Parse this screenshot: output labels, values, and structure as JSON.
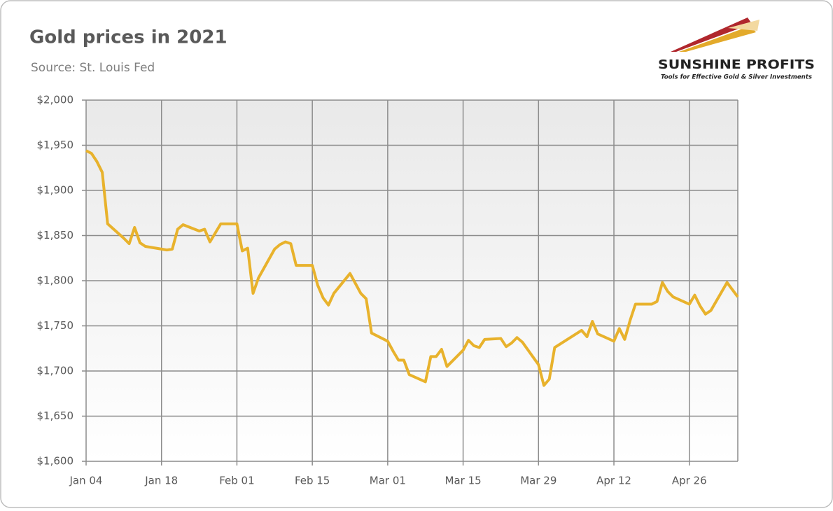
{
  "chart_data": {
    "type": "line",
    "title": "Gold prices in 2021",
    "subtitle": "Source: St. Louis Fed",
    "logo": {
      "name": "SUNSHINE PROFITS",
      "tagline": "Tools for Effective Gold & Silver Investments"
    },
    "x": [
      0,
      1,
      2,
      3,
      4,
      7,
      8,
      9,
      10,
      11,
      15,
      16,
      17,
      18,
      21,
      22,
      23,
      24,
      25,
      28,
      29,
      30,
      31,
      32,
      35,
      36,
      37,
      38,
      39,
      42,
      43,
      44,
      45,
      46,
      49,
      50,
      51,
      52,
      53,
      56,
      57,
      58,
      59,
      60,
      63,
      64,
      65,
      66,
      67,
      70,
      71,
      72,
      73,
      74,
      77,
      78,
      79,
      80,
      81,
      84,
      85,
      86,
      87,
      92,
      93,
      94,
      95,
      98,
      99,
      100,
      101,
      102,
      105,
      106,
      107,
      108,
      109,
      112,
      113,
      114,
      115,
      116,
      119,
      121
    ],
    "series": [
      {
        "name": "Gold price",
        "color": "#e8b22c",
        "values": [
          1944,
          1941,
          1932,
          1920,
          1863,
          1847,
          1841,
          1859,
          1842,
          1838,
          1834,
          1835,
          1857,
          1862,
          1855,
          1857,
          1843,
          1853,
          1863,
          1863,
          1833,
          1836,
          1786,
          1803,
          1835,
          1840,
          1843,
          1841,
          1817,
          1817,
          1795,
          1781,
          1773,
          1786,
          1808,
          1797,
          1786,
          1780,
          1742,
          1733,
          1722,
          1712,
          1712,
          1696,
          1688,
          1716,
          1716,
          1724,
          1705,
          1723,
          1734,
          1728,
          1726,
          1735,
          1736,
          1727,
          1731,
          1737,
          1732,
          1707,
          1684,
          1691,
          1726,
          1745,
          1738,
          1755,
          1741,
          1733,
          1747,
          1735,
          1756,
          1774,
          1774,
          1777,
          1798,
          1788,
          1782,
          1774,
          1784,
          1772,
          1763,
          1767,
          1798,
          1782
        ]
      }
    ],
    "xlim": [
      0,
      121
    ],
    "xticks": [
      {
        "value": 0,
        "label": "Jan 04"
      },
      {
        "value": 14,
        "label": "Jan 18"
      },
      {
        "value": 28,
        "label": "Feb 01"
      },
      {
        "value": 42,
        "label": "Feb 15"
      },
      {
        "value": 56,
        "label": "Mar 01"
      },
      {
        "value": 70,
        "label": "Mar 15"
      },
      {
        "value": 84,
        "label": "Mar 29"
      },
      {
        "value": 98,
        "label": "Apr 12"
      },
      {
        "value": 112,
        "label": "Apr 26"
      }
    ],
    "ylim": [
      1600,
      2000
    ],
    "yticks": [
      {
        "value": 1600,
        "label": "$1,600"
      },
      {
        "value": 1650,
        "label": "$1,650"
      },
      {
        "value": 1700,
        "label": "$1,700"
      },
      {
        "value": 1750,
        "label": "$1,750"
      },
      {
        "value": 1800,
        "label": "$1,800"
      },
      {
        "value": 1850,
        "label": "$1,850"
      },
      {
        "value": 1900,
        "label": "$1,900"
      },
      {
        "value": 1950,
        "label": "$1,950"
      },
      {
        "value": 2000,
        "label": "$2,000"
      }
    ],
    "grid": true
  }
}
